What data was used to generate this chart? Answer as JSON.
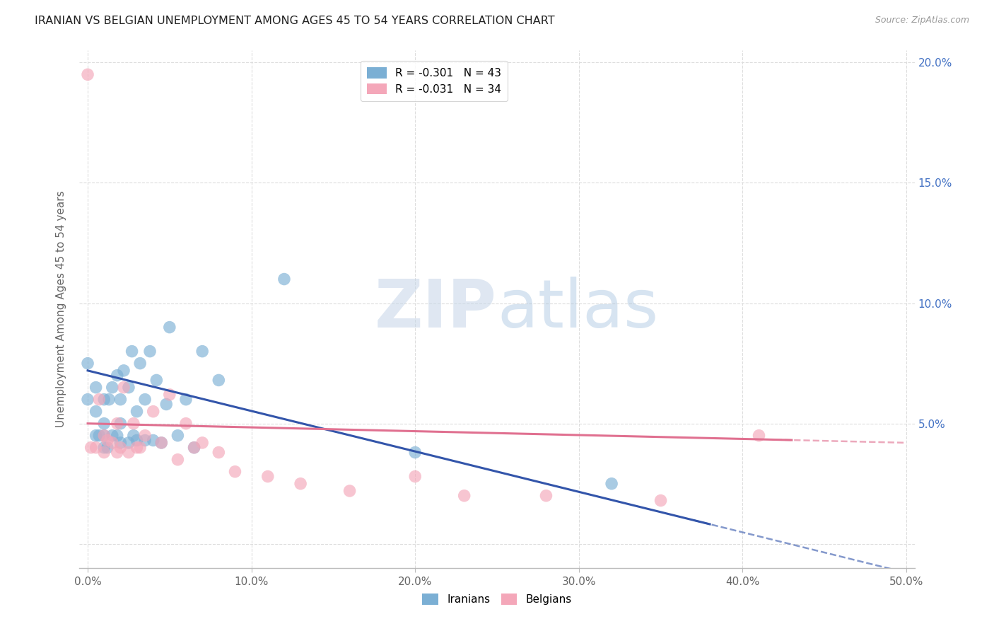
{
  "title": "IRANIAN VS BELGIAN UNEMPLOYMENT AMONG AGES 45 TO 54 YEARS CORRELATION CHART",
  "source": "Source: ZipAtlas.com",
  "xlabel": "",
  "ylabel": "Unemployment Among Ages 45 to 54 years",
  "xlim": [
    -0.005,
    0.505
  ],
  "ylim": [
    -0.01,
    0.205
  ],
  "xticks": [
    0.0,
    0.1,
    0.2,
    0.3,
    0.4,
    0.5
  ],
  "yticks_right": [
    0.0,
    0.05,
    0.1,
    0.15,
    0.2
  ],
  "ytick_labels_right": [
    "",
    "5.0%",
    "10.0%",
    "15.0%",
    "20.0%"
  ],
  "xtick_labels": [
    "0.0%",
    "10.0%",
    "20.0%",
    "30.0%",
    "40.0%",
    "50.0%"
  ],
  "legend_iranian": "R = -0.301   N = 43",
  "legend_belgian": "R = -0.031   N = 34",
  "iranian_color": "#7bafd4",
  "belgian_color": "#f4a7b9",
  "trend_iranian_color": "#3355aa",
  "trend_belgian_color": "#e07090",
  "iranians_x": [
    0.0,
    0.0,
    0.005,
    0.005,
    0.005,
    0.007,
    0.01,
    0.01,
    0.01,
    0.01,
    0.012,
    0.013,
    0.015,
    0.015,
    0.018,
    0.018,
    0.02,
    0.02,
    0.02,
    0.022,
    0.025,
    0.025,
    0.027,
    0.028,
    0.03,
    0.03,
    0.032,
    0.035,
    0.035,
    0.038,
    0.04,
    0.042,
    0.045,
    0.048,
    0.05,
    0.055,
    0.06,
    0.065,
    0.07,
    0.08,
    0.12,
    0.2,
    0.32
  ],
  "iranians_y": [
    0.06,
    0.075,
    0.045,
    0.055,
    0.065,
    0.045,
    0.04,
    0.045,
    0.05,
    0.06,
    0.04,
    0.06,
    0.045,
    0.065,
    0.045,
    0.07,
    0.042,
    0.05,
    0.06,
    0.072,
    0.042,
    0.065,
    0.08,
    0.045,
    0.043,
    0.055,
    0.075,
    0.043,
    0.06,
    0.08,
    0.043,
    0.068,
    0.042,
    0.058,
    0.09,
    0.045,
    0.06,
    0.04,
    0.08,
    0.068,
    0.11,
    0.038,
    0.025
  ],
  "belgians_x": [
    0.0,
    0.002,
    0.005,
    0.007,
    0.01,
    0.01,
    0.012,
    0.015,
    0.018,
    0.018,
    0.02,
    0.022,
    0.025,
    0.028,
    0.03,
    0.032,
    0.035,
    0.04,
    0.045,
    0.05,
    0.055,
    0.06,
    0.065,
    0.07,
    0.08,
    0.09,
    0.11,
    0.13,
    0.16,
    0.2,
    0.23,
    0.28,
    0.35,
    0.41
  ],
  "belgians_y": [
    0.195,
    0.04,
    0.04,
    0.06,
    0.038,
    0.045,
    0.043,
    0.042,
    0.038,
    0.05,
    0.04,
    0.065,
    0.038,
    0.05,
    0.04,
    0.04,
    0.045,
    0.055,
    0.042,
    0.062,
    0.035,
    0.05,
    0.04,
    0.042,
    0.038,
    0.03,
    0.028,
    0.025,
    0.022,
    0.028,
    0.02,
    0.02,
    0.018,
    0.045
  ],
  "trend_iran_x0": 0.0,
  "trend_iran_y0": 0.072,
  "trend_iran_x1": 0.5,
  "trend_iran_y1": -0.012,
  "trend_belg_x0": 0.0,
  "trend_belg_y0": 0.05,
  "trend_belg_x1": 0.5,
  "trend_belg_y1": 0.042,
  "watermark_zip": "ZIP",
  "watermark_atlas": "atlas",
  "background_color": "#ffffff",
  "grid_color": "#dddddd"
}
